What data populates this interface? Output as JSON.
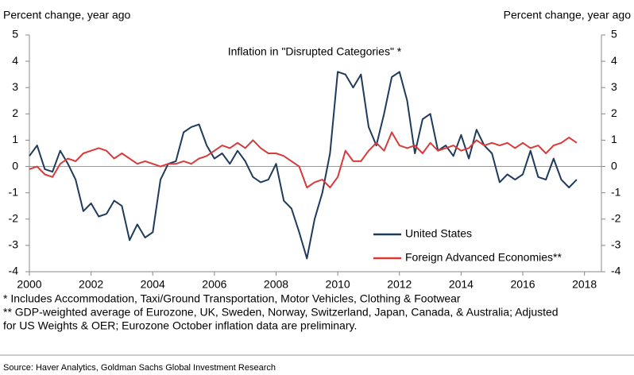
{
  "chart_data": {
    "type": "line",
    "title": "Inflation in \"Disrupted Categories\" *",
    "y_label": "Percent change, year ago",
    "y2_label": "Percent change, year ago",
    "x": [
      2000,
      2000.25,
      2000.5,
      2000.75,
      2001,
      2001.25,
      2001.5,
      2001.75,
      2002,
      2002.25,
      2002.5,
      2002.75,
      2003,
      2003.25,
      2003.5,
      2003.75,
      2004,
      2004.25,
      2004.5,
      2004.75,
      2005,
      2005.25,
      2005.5,
      2005.75,
      2006,
      2006.25,
      2006.5,
      2006.75,
      2007,
      2007.25,
      2007.5,
      2007.75,
      2008,
      2008.25,
      2008.5,
      2008.75,
      2009,
      2009.25,
      2009.5,
      2009.75,
      2010,
      2010.25,
      2010.5,
      2010.75,
      2011,
      2011.25,
      2011.5,
      2011.75,
      2012,
      2012.25,
      2012.5,
      2012.75,
      2013,
      2013.25,
      2013.5,
      2013.75,
      2014,
      2014.25,
      2014.5,
      2014.75,
      2015,
      2015.25,
      2015.5,
      2015.75,
      2016,
      2016.25,
      2016.5,
      2016.75,
      2017,
      2017.25,
      2017.5,
      2017.75
    ],
    "series": [
      {
        "name": "United States",
        "color": "#1f3b5c",
        "values": [
          0.4,
          0.8,
          -0.1,
          -0.2,
          0.6,
          0.1,
          -0.5,
          -1.7,
          -1.4,
          -1.9,
          -1.8,
          -1.3,
          -1.5,
          -2.8,
          -2.2,
          -2.7,
          -2.5,
          -0.5,
          0.1,
          0.2,
          1.3,
          1.5,
          1.6,
          0.8,
          0.3,
          0.5,
          0.1,
          0.6,
          0.2,
          -0.4,
          -0.6,
          -0.5,
          0.1,
          -1.3,
          -1.6,
          -2.5,
          -3.5,
          -2.0,
          -1.0,
          0.5,
          3.6,
          3.5,
          3.0,
          3.5,
          1.5,
          0.8,
          2.0,
          3.4,
          3.6,
          2.5,
          0.5,
          1.8,
          2.0,
          0.6,
          0.8,
          0.4,
          1.2,
          0.3,
          1.4,
          0.8,
          0.5,
          -0.6,
          -0.3,
          -0.5,
          -0.3,
          0.6,
          -0.4,
          -0.5,
          0.3,
          -0.5,
          -0.8,
          -0.5
        ]
      },
      {
        "name": "Foreign Advanced Economies**",
        "color": "#d93a3a",
        "values": [
          -0.1,
          0,
          -0.3,
          -0.4,
          0.1,
          0.3,
          0.2,
          0.5,
          0.6,
          0.7,
          0.6,
          0.3,
          0.5,
          0.3,
          0.1,
          0.2,
          0.1,
          0,
          0.1,
          0.1,
          0.2,
          0.1,
          0.3,
          0.4,
          0.6,
          0.8,
          0.7,
          0.9,
          0.7,
          1.0,
          0.7,
          0.5,
          0.5,
          0.4,
          0.2,
          0,
          -0.8,
          -0.6,
          -0.5,
          -0.8,
          -0.4,
          0.6,
          0.2,
          0.2,
          0.6,
          0.9,
          0.6,
          1.3,
          0.8,
          0.7,
          0.8,
          0.5,
          0.9,
          0.6,
          0.7,
          0.8,
          0.6,
          0.7,
          1.0,
          0.8,
          0.9,
          0.8,
          0.9,
          0.7,
          0.9,
          0.7,
          0.8,
          0.5,
          0.8,
          0.9,
          1.1,
          0.9
        ]
      }
    ],
    "xlim": [
      2000,
      2018.55
    ],
    "xticks": [
      2000,
      2002,
      2004,
      2006,
      2008,
      2010,
      2012,
      2014,
      2016,
      2018
    ],
    "ylim": [
      -4,
      5
    ],
    "yticks": [
      -4,
      -3,
      -2,
      -1,
      0,
      1,
      2,
      3,
      4,
      5
    ],
    "y2lim": [
      -4,
      5
    ],
    "y2ticks": [
      -4,
      -3,
      -2,
      -1,
      0,
      1,
      2,
      3,
      4,
      5
    ],
    "grid": false,
    "footnotes": [
      "* Includes Accommodation, Taxi/Ground Transportation, Motor Vehicles, Clothing & Footwear",
      "** GDP-weighted average of Eurozone, UK, Sweden, Norway, Switzerland, Japan, Canada, & Australia; Adjusted",
      "for US Weights & OER; Eurozone October inflation data are preliminary."
    ],
    "source": "Source: Haver Analytics, Goldman Sachs Global Investment Research"
  }
}
